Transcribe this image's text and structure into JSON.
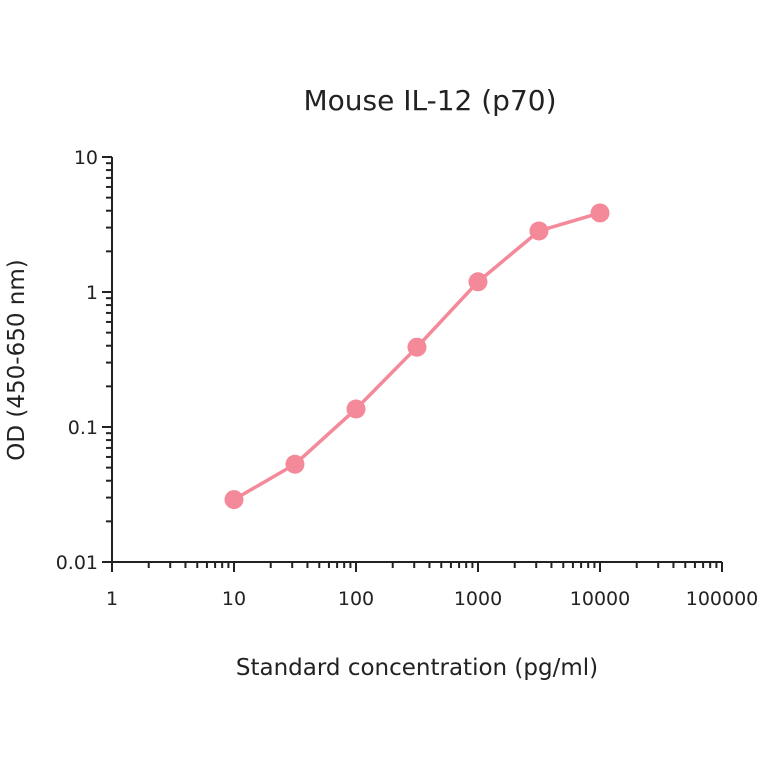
{
  "chart_data": {
    "type": "line",
    "title": "Mouse IL-12 (p70)",
    "xlabel": "Standard concentration (pg/ml)",
    "ylabel": "OD (450-650 nm)",
    "xscale": "log",
    "yscale": "log",
    "xlim": [
      1,
      100000
    ],
    "ylim": [
      0.01,
      10
    ],
    "xticks": [
      "1",
      "10",
      "100",
      "1000",
      "10000",
      "100000"
    ],
    "yticks": [
      "0.01",
      "0.1",
      "1",
      "10"
    ],
    "grid": false,
    "series": [
      {
        "x": [
          10,
          31.6,
          100,
          316,
          1000,
          3160,
          10000
        ],
        "y": [
          0.029,
          0.053,
          0.136,
          0.39,
          1.19,
          2.83,
          3.85
        ],
        "color": "#f4899a",
        "marker": "circle"
      }
    ]
  }
}
